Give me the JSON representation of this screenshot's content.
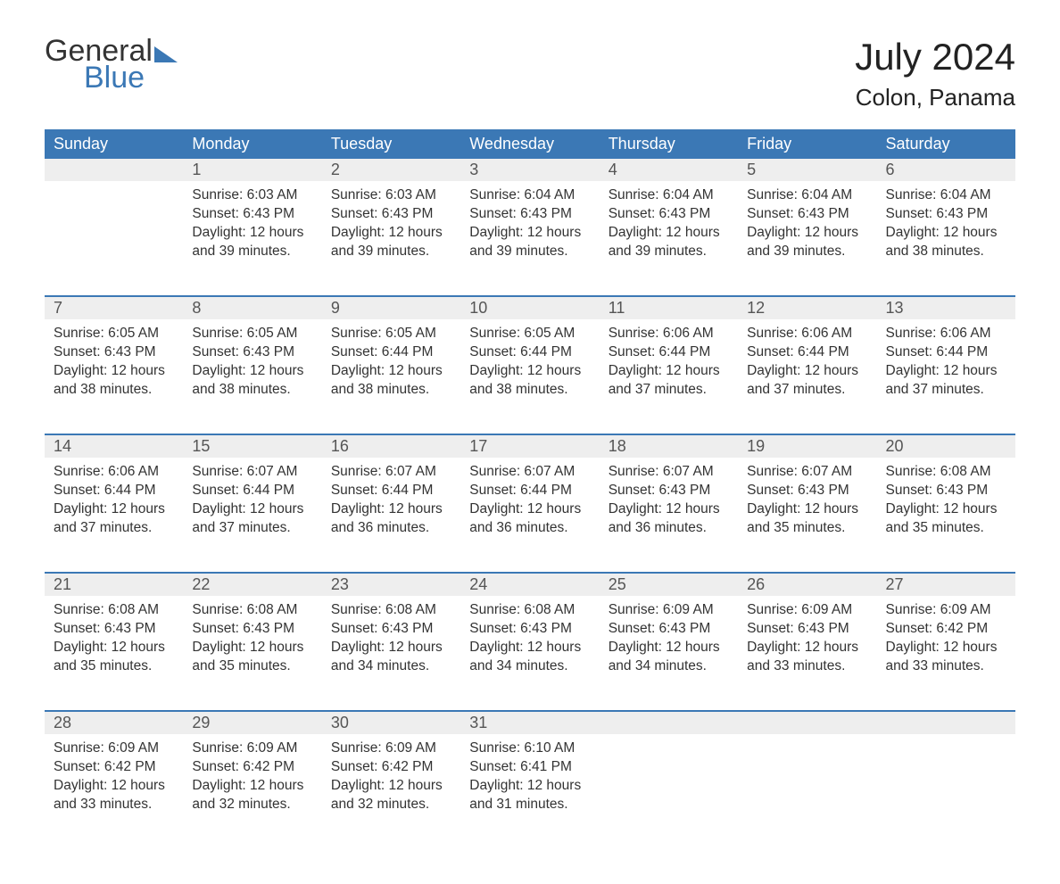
{
  "logo": {
    "word1": "General",
    "word2": "Blue",
    "triangle_color": "#3b78b5"
  },
  "title": "July 2024",
  "location": "Colon, Panama",
  "colors": {
    "header_bg": "#3b78b5",
    "header_text": "#ffffff",
    "daynum_bg": "#eeeeee",
    "row_border": "#3b78b5",
    "body_text": "#333333",
    "background": "#ffffff"
  },
  "day_headers": [
    "Sunday",
    "Monday",
    "Tuesday",
    "Wednesday",
    "Thursday",
    "Friday",
    "Saturday"
  ],
  "weeks": [
    [
      null,
      {
        "n": "1",
        "sunrise": "6:03 AM",
        "sunset": "6:43 PM",
        "daylight": "12 hours and 39 minutes."
      },
      {
        "n": "2",
        "sunrise": "6:03 AM",
        "sunset": "6:43 PM",
        "daylight": "12 hours and 39 minutes."
      },
      {
        "n": "3",
        "sunrise": "6:04 AM",
        "sunset": "6:43 PM",
        "daylight": "12 hours and 39 minutes."
      },
      {
        "n": "4",
        "sunrise": "6:04 AM",
        "sunset": "6:43 PM",
        "daylight": "12 hours and 39 minutes."
      },
      {
        "n": "5",
        "sunrise": "6:04 AM",
        "sunset": "6:43 PM",
        "daylight": "12 hours and 39 minutes."
      },
      {
        "n": "6",
        "sunrise": "6:04 AM",
        "sunset": "6:43 PM",
        "daylight": "12 hours and 38 minutes."
      }
    ],
    [
      {
        "n": "7",
        "sunrise": "6:05 AM",
        "sunset": "6:43 PM",
        "daylight": "12 hours and 38 minutes."
      },
      {
        "n": "8",
        "sunrise": "6:05 AM",
        "sunset": "6:43 PM",
        "daylight": "12 hours and 38 minutes."
      },
      {
        "n": "9",
        "sunrise": "6:05 AM",
        "sunset": "6:44 PM",
        "daylight": "12 hours and 38 minutes."
      },
      {
        "n": "10",
        "sunrise": "6:05 AM",
        "sunset": "6:44 PM",
        "daylight": "12 hours and 38 minutes."
      },
      {
        "n": "11",
        "sunrise": "6:06 AM",
        "sunset": "6:44 PM",
        "daylight": "12 hours and 37 minutes."
      },
      {
        "n": "12",
        "sunrise": "6:06 AM",
        "sunset": "6:44 PM",
        "daylight": "12 hours and 37 minutes."
      },
      {
        "n": "13",
        "sunrise": "6:06 AM",
        "sunset": "6:44 PM",
        "daylight": "12 hours and 37 minutes."
      }
    ],
    [
      {
        "n": "14",
        "sunrise": "6:06 AM",
        "sunset": "6:44 PM",
        "daylight": "12 hours and 37 minutes."
      },
      {
        "n": "15",
        "sunrise": "6:07 AM",
        "sunset": "6:44 PM",
        "daylight": "12 hours and 37 minutes."
      },
      {
        "n": "16",
        "sunrise": "6:07 AM",
        "sunset": "6:44 PM",
        "daylight": "12 hours and 36 minutes."
      },
      {
        "n": "17",
        "sunrise": "6:07 AM",
        "sunset": "6:44 PM",
        "daylight": "12 hours and 36 minutes."
      },
      {
        "n": "18",
        "sunrise": "6:07 AM",
        "sunset": "6:43 PM",
        "daylight": "12 hours and 36 minutes."
      },
      {
        "n": "19",
        "sunrise": "6:07 AM",
        "sunset": "6:43 PM",
        "daylight": "12 hours and 35 minutes."
      },
      {
        "n": "20",
        "sunrise": "6:08 AM",
        "sunset": "6:43 PM",
        "daylight": "12 hours and 35 minutes."
      }
    ],
    [
      {
        "n": "21",
        "sunrise": "6:08 AM",
        "sunset": "6:43 PM",
        "daylight": "12 hours and 35 minutes."
      },
      {
        "n": "22",
        "sunrise": "6:08 AM",
        "sunset": "6:43 PM",
        "daylight": "12 hours and 35 minutes."
      },
      {
        "n": "23",
        "sunrise": "6:08 AM",
        "sunset": "6:43 PM",
        "daylight": "12 hours and 34 minutes."
      },
      {
        "n": "24",
        "sunrise": "6:08 AM",
        "sunset": "6:43 PM",
        "daylight": "12 hours and 34 minutes."
      },
      {
        "n": "25",
        "sunrise": "6:09 AM",
        "sunset": "6:43 PM",
        "daylight": "12 hours and 34 minutes."
      },
      {
        "n": "26",
        "sunrise": "6:09 AM",
        "sunset": "6:43 PM",
        "daylight": "12 hours and 33 minutes."
      },
      {
        "n": "27",
        "sunrise": "6:09 AM",
        "sunset": "6:42 PM",
        "daylight": "12 hours and 33 minutes."
      }
    ],
    [
      {
        "n": "28",
        "sunrise": "6:09 AM",
        "sunset": "6:42 PM",
        "daylight": "12 hours and 33 minutes."
      },
      {
        "n": "29",
        "sunrise": "6:09 AM",
        "sunset": "6:42 PM",
        "daylight": "12 hours and 32 minutes."
      },
      {
        "n": "30",
        "sunrise": "6:09 AM",
        "sunset": "6:42 PM",
        "daylight": "12 hours and 32 minutes."
      },
      {
        "n": "31",
        "sunrise": "6:10 AM",
        "sunset": "6:41 PM",
        "daylight": "12 hours and 31 minutes."
      },
      null,
      null,
      null
    ]
  ],
  "labels": {
    "sunrise": "Sunrise:",
    "sunset": "Sunset:",
    "daylight": "Daylight:"
  }
}
